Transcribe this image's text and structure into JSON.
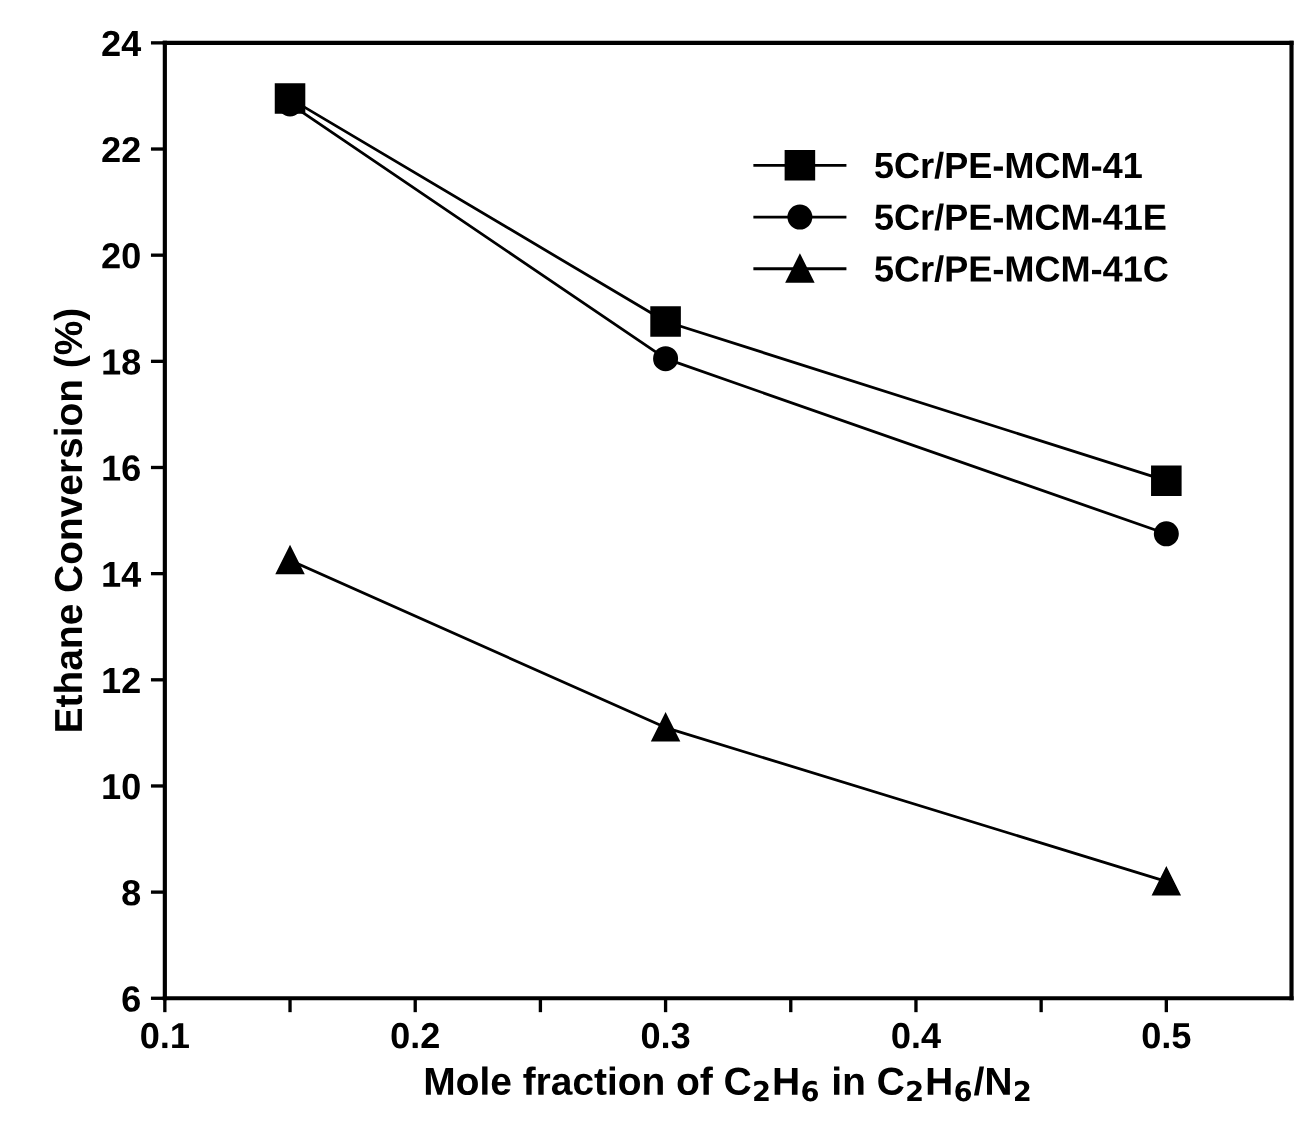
{
  "chart_data": {
    "type": "line",
    "xlabel": "Mole fraction of C$_{2}$H$_{6}$ in C$_{2}$H$_{6}$/N$_{2}$",
    "ylabel": "Ethane Conversion (%)",
    "x": [
      0.15,
      0.3,
      0.5
    ],
    "series": [
      {
        "name": "5Cr/PE-MCM-41",
        "color": "#000000",
        "marker": "square",
        "values": [
          22.95,
          18.75,
          15.75
        ]
      },
      {
        "name": "5Cr/PE-MCM-41E",
        "color": "#000000",
        "marker": "circle",
        "values": [
          22.85,
          18.05,
          14.75
        ]
      },
      {
        "name": "5Cr/PE-MCM-41C",
        "color": "#000000",
        "marker": "triangle",
        "values": [
          14.25,
          11.1,
          8.2
        ]
      }
    ],
    "xlim": [
      0.1,
      0.55
    ],
    "ylim": [
      6,
      24
    ],
    "xticks": [
      0.1,
      {
        "value": 0.15,
        "label": null
      },
      0.2,
      {
        "value": 0.25,
        "label": null
      },
      0.3,
      {
        "value": 0.35,
        "label": null
      },
      0.4,
      {
        "value": 0.45,
        "label": null
      },
      0.5
    ],
    "yticks": [
      6,
      8,
      10,
      12,
      14,
      16,
      18,
      20,
      22,
      24
    ],
    "grid": false,
    "legend": "top right",
    "line_style": "solid"
  }
}
